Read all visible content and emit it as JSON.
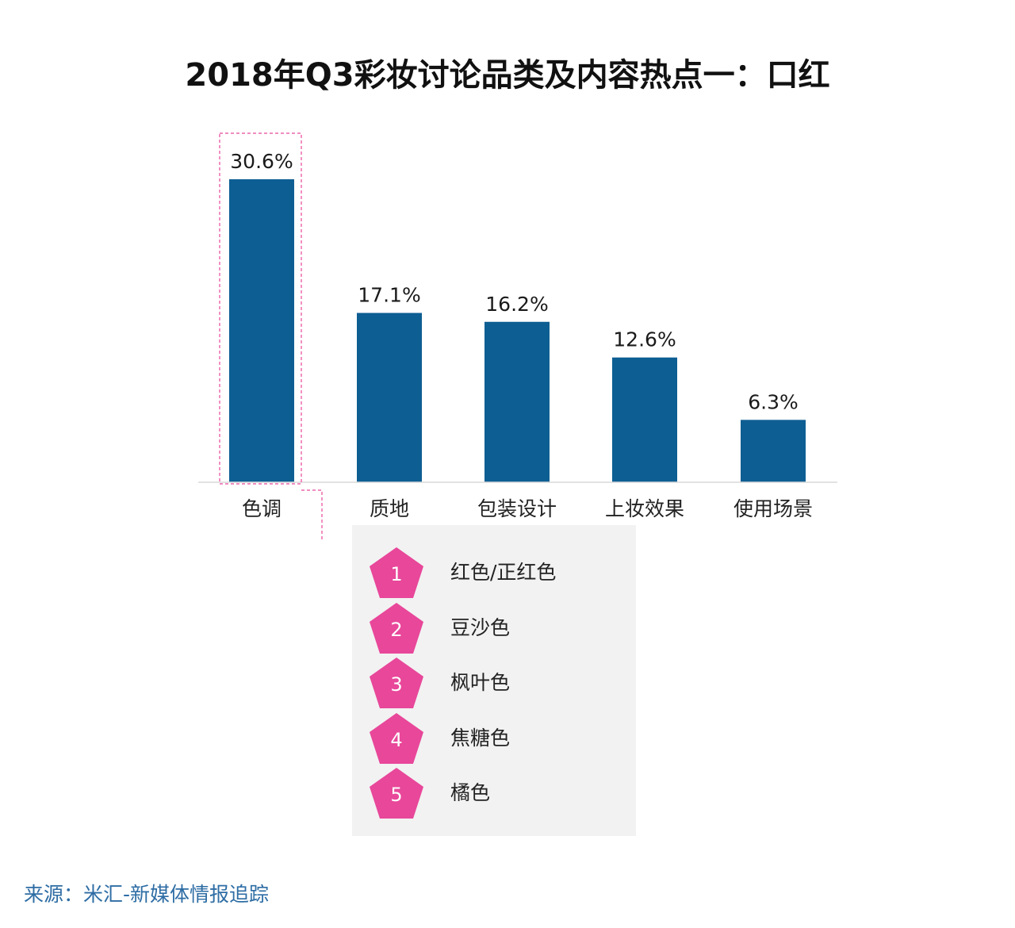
{
  "chart_data": {
    "type": "bar",
    "title": "2018年Q3彩妆讨论品类及内容热点一：口红",
    "categories": [
      "色调",
      "质地",
      "包装设计",
      "上妆效果",
      "使用场景"
    ],
    "values": [
      30.6,
      17.1,
      16.2,
      12.6,
      6.3
    ],
    "value_labels": [
      "30.6%",
      "17.1%",
      "16.2%",
      "12.6%",
      "6.3%"
    ],
    "unit": "%",
    "ylim": [
      0,
      30.6
    ],
    "grid": false,
    "legend": "none",
    "bar_color": "#0d5e92",
    "highlight": "色调",
    "highlight_color": "#e8479a"
  },
  "detail": {
    "items": [
      {
        "rank": "1",
        "label": "红色/正红色"
      },
      {
        "rank": "2",
        "label": "豆沙色"
      },
      {
        "rank": "3",
        "label": "枫叶色"
      },
      {
        "rank": "4",
        "label": "焦糖色"
      },
      {
        "rank": "5",
        "label": "橘色"
      }
    ],
    "badge_color": "#e8479a",
    "panel_color": "#f2f2f2"
  },
  "source": "来源：米汇-新媒体情报追踪"
}
